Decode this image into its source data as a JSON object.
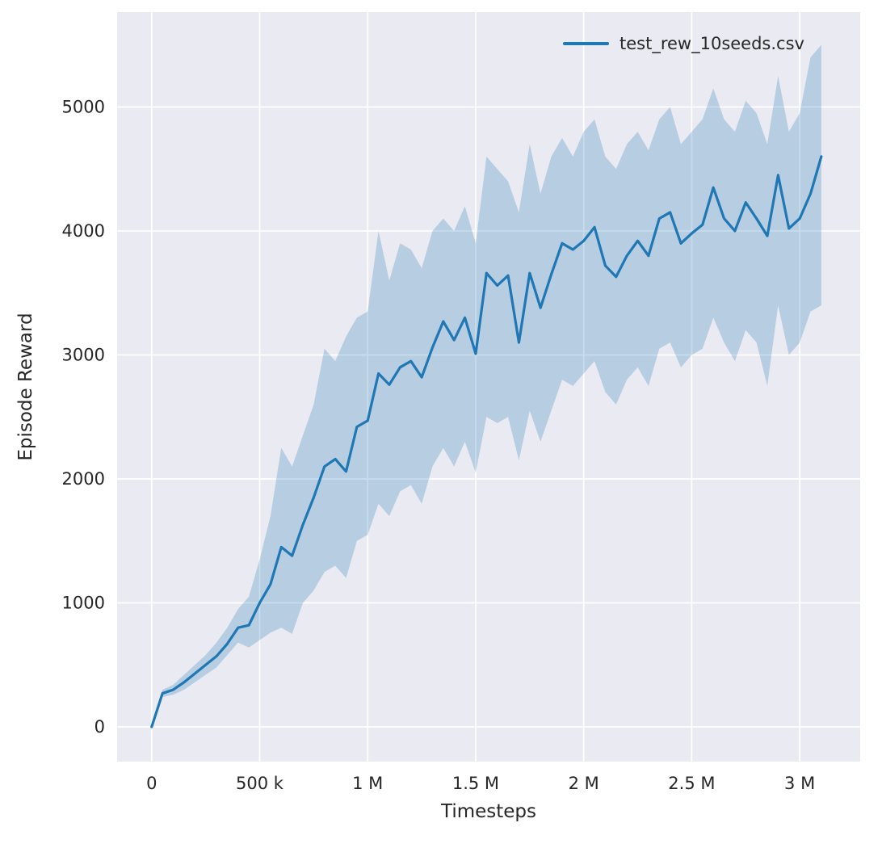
{
  "figure": {
    "background": "#ffffff",
    "plot_background": "#eaeaf2",
    "grid_color": "#ffffff",
    "text_color": "#262626"
  },
  "chart_data": {
    "type": "line",
    "title": "",
    "xlabel": "Timesteps",
    "ylabel": "Episode Reward",
    "xlim": [
      -160000,
      3280000
    ],
    "ylim": [
      -280,
      5765
    ],
    "grid": true,
    "legend_position": "upper right",
    "x_ticks": {
      "values": [
        0,
        500000,
        1000000,
        1500000,
        2000000,
        2500000,
        3000000
      ],
      "labels": [
        "0",
        "500 k",
        "1 M",
        "1.5 M",
        "2 M",
        "2.5 M",
        "3 M"
      ]
    },
    "y_ticks": {
      "values": [
        0,
        1000,
        2000,
        3000,
        4000,
        5000
      ],
      "labels": [
        "0",
        "1000",
        "2000",
        "3000",
        "4000",
        "5000"
      ]
    },
    "series": [
      {
        "name": "test_rew_10seeds.csv",
        "color": "#1f77b4",
        "band_color": "#1f77b4",
        "band_opacity": 0.25,
        "x": [
          0,
          50000,
          100000,
          150000,
          200000,
          250000,
          300000,
          350000,
          400000,
          450000,
          500000,
          550000,
          600000,
          650000,
          700000,
          750000,
          800000,
          850000,
          900000,
          950000,
          1000000,
          1050000,
          1100000,
          1150000,
          1200000,
          1250000,
          1300000,
          1350000,
          1400000,
          1450000,
          1500000,
          1550000,
          1600000,
          1650000,
          1700000,
          1750000,
          1800000,
          1850000,
          1900000,
          1950000,
          2000000,
          2050000,
          2100000,
          2150000,
          2200000,
          2250000,
          2300000,
          2350000,
          2400000,
          2450000,
          2500000,
          2550000,
          2600000,
          2650000,
          2700000,
          2750000,
          2800000,
          2850000,
          2900000,
          2950000,
          3000000,
          3050000,
          3100000
        ],
        "mean": [
          0,
          270,
          300,
          360,
          430,
          500,
          570,
          670,
          800,
          820,
          1000,
          1150,
          1450,
          1380,
          1630,
          1850,
          2100,
          2160,
          2060,
          2420,
          2470,
          2850,
          2760,
          2900,
          2950,
          2820,
          3060,
          3270,
          3120,
          3300,
          3010,
          3660,
          3560,
          3640,
          3100,
          3660,
          3380,
          3650,
          3900,
          3850,
          3920,
          4030,
          3720,
          3630,
          3800,
          3920,
          3800,
          4100,
          4150,
          3900,
          3980,
          4050,
          4350,
          4100,
          4000,
          4230,
          4100,
          3960,
          4450,
          4020,
          4100,
          4300,
          4600
        ],
        "lower": [
          0,
          240,
          260,
          300,
          360,
          420,
          480,
          580,
          680,
          640,
          700,
          760,
          800,
          750,
          1000,
          1100,
          1250,
          1300,
          1200,
          1500,
          1550,
          1800,
          1700,
          1900,
          1950,
          1800,
          2100,
          2250,
          2100,
          2300,
          2050,
          2500,
          2450,
          2500,
          2150,
          2550,
          2300,
          2550,
          2800,
          2750,
          2850,
          2950,
          2700,
          2600,
          2800,
          2900,
          2750,
          3050,
          3100,
          2900,
          3000,
          3050,
          3300,
          3100,
          2950,
          3200,
          3100,
          2750,
          3400,
          3000,
          3100,
          3350,
          3400
        ],
        "upper": [
          30,
          300,
          340,
          420,
          500,
          580,
          680,
          800,
          950,
          1050,
          1350,
          1700,
          2250,
          2100,
          2350,
          2600,
          3050,
          2950,
          3150,
          3300,
          3350,
          4000,
          3600,
          3900,
          3850,
          3700,
          4000,
          4100,
          4000,
          4200,
          3900,
          4600,
          4500,
          4400,
          4150,
          4700,
          4300,
          4600,
          4750,
          4600,
          4800,
          4900,
          4600,
          4500,
          4700,
          4800,
          4650,
          4900,
          5000,
          4700,
          4800,
          4900,
          5150,
          4900,
          4800,
          5050,
          4950,
          4700,
          5250,
          4800,
          4950,
          5400,
          5500
        ]
      }
    ]
  }
}
